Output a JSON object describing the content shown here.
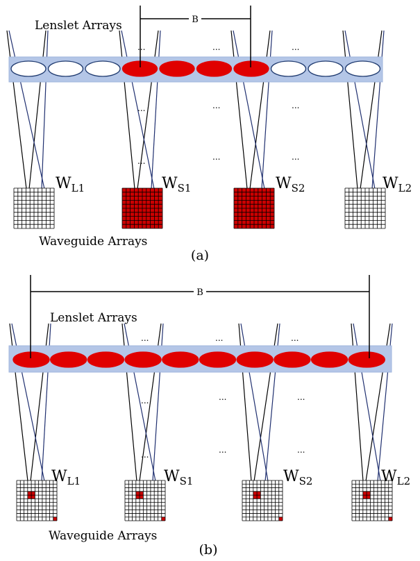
{
  "colors": {
    "bar_fill": "#b4c6e7",
    "bar_stroke": "#9fb5dc",
    "lens_red": "#e00000",
    "grid_red": "#cc0000",
    "ray_blue": "#1f2f6f",
    "ray_black": "#000000"
  },
  "panel_a": {
    "caption": "(a)",
    "baseline_label": "B",
    "lenslet_label": "Lenslet Arrays",
    "waveguide_label": "Waveguide Arrays",
    "ellipsis": "...",
    "lens_states": [
      "white",
      "white",
      "white",
      "red",
      "red",
      "red",
      "red",
      "white",
      "white",
      "white"
    ],
    "waveguides": [
      {
        "main": "W",
        "sub": "L1",
        "style": "white"
      },
      {
        "main": "W",
        "sub": "S1",
        "style": "red"
      },
      {
        "main": "W",
        "sub": "S2",
        "style": "red"
      },
      {
        "main": "W",
        "sub": "L2",
        "style": "white"
      }
    ]
  },
  "panel_b": {
    "caption": "(b)",
    "baseline_label": "B",
    "lenslet_label": "Lenslet Arrays",
    "waveguide_label": "Waveguide Arrays",
    "ellipsis": "...",
    "lens_states": [
      "red",
      "red",
      "red",
      "red",
      "red",
      "red",
      "red",
      "red",
      "red",
      "red"
    ],
    "waveguides": [
      {
        "main": "W",
        "sub": "L1",
        "style": "sparse"
      },
      {
        "main": "W",
        "sub": "S1",
        "style": "sparse"
      },
      {
        "main": "W",
        "sub": "S2",
        "style": "sparse"
      },
      {
        "main": "W",
        "sub": "L2",
        "style": "sparse"
      }
    ]
  }
}
